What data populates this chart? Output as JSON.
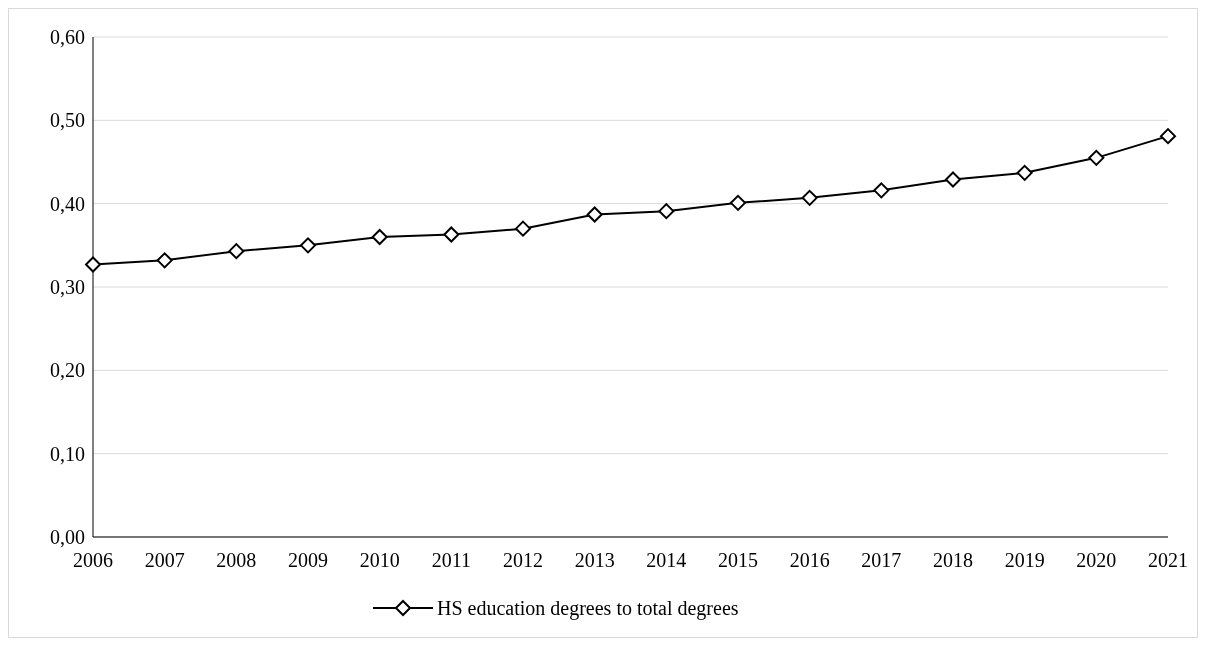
{
  "chart_data": {
    "type": "line",
    "categories": [
      "2006",
      "2007",
      "2008",
      "2009",
      "2010",
      "2011",
      "2012",
      "2013",
      "2014",
      "2015",
      "2016",
      "2017",
      "2018",
      "2019",
      "2020",
      "2021"
    ],
    "series": [
      {
        "name": "HS education degrees to total degrees",
        "color": "#000000",
        "values": [
          0.327,
          0.332,
          0.343,
          0.35,
          0.36,
          0.363,
          0.37,
          0.387,
          0.391,
          0.401,
          0.407,
          0.416,
          0.429,
          0.437,
          0.455,
          0.481
        ]
      }
    ],
    "ylim": [
      0,
      0.6
    ],
    "yticks": [
      {
        "value": 0,
        "label": "0,00"
      },
      {
        "value": 0.1,
        "label": "0,10"
      },
      {
        "value": 0.2,
        "label": "0,20"
      },
      {
        "value": 0.3,
        "label": "0,30"
      },
      {
        "value": 0.4,
        "label": "0,40"
      },
      {
        "value": 0.5,
        "label": "0,50"
      },
      {
        "value": 0.6,
        "label": "0,60"
      }
    ],
    "grid": "y",
    "legend": "bottom",
    "marker": "diamond",
    "line_style": "solid"
  }
}
